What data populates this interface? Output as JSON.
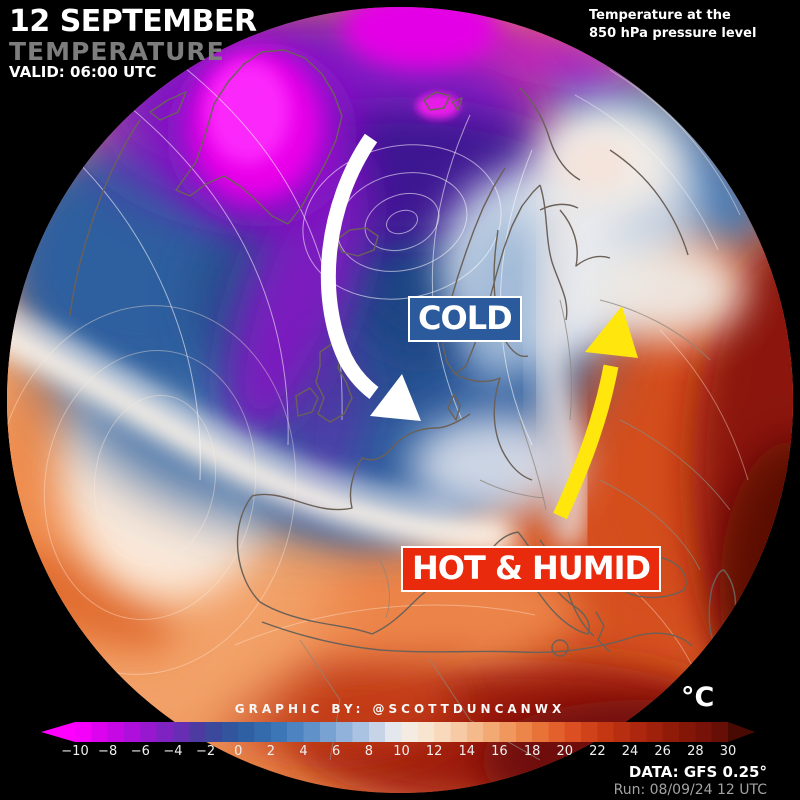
{
  "header": {
    "date": "12 SEPTEMBER",
    "title": "TEMPERATURE",
    "valid": "VALID: 06:00 UTC"
  },
  "note": {
    "line1": "Temperature at the",
    "line2": "850 hPa pressure level"
  },
  "annotations": {
    "cold_label": "COLD",
    "cold_bg": "#2b5b9c",
    "hot_label": "HOT & HUMID",
    "hot_bg": "#ea2a0c"
  },
  "credit": "GRAPHIC BY: @SCOTTDUNCANWX",
  "footer": {
    "unit": "°C",
    "source": "DATA: GFS 0.25°",
    "run": "Run: 08/09/24 12 UTC"
  },
  "chart_data": {
    "type": "heatmap",
    "title": "Temperature at the 850 hPa pressure level",
    "map_labels": [
      "COLD",
      "HOT & HUMID"
    ],
    "arrows": [
      {
        "name": "cold-air-flow",
        "color": "#ffffff"
      },
      {
        "name": "warm-air-flow",
        "color": "#ffe70d"
      }
    ],
    "colorbar": {
      "unit": "°C",
      "min": -10,
      "max": 30,
      "tick_step": 2,
      "ticks": [
        -10,
        -8,
        -6,
        -4,
        -2,
        0,
        2,
        4,
        6,
        8,
        10,
        12,
        14,
        16,
        18,
        20,
        22,
        24,
        26,
        28,
        30
      ],
      "under_color": "#ff00ff",
      "over_color": "#4a0a04",
      "stops": [
        {
          "t": -10,
          "c": "#ff00ff"
        },
        {
          "t": -8,
          "c": "#d004e8"
        },
        {
          "t": -6,
          "c": "#a313d6"
        },
        {
          "t": -4,
          "c": "#7327bb"
        },
        {
          "t": -2,
          "c": "#41419a"
        },
        {
          "t": 0,
          "c": "#2d5b9f"
        },
        {
          "t": 2,
          "c": "#3570b2"
        },
        {
          "t": 4,
          "c": "#5589c4"
        },
        {
          "t": 6,
          "c": "#84aad6"
        },
        {
          "t": 8,
          "c": "#b8cbe6"
        },
        {
          "t": 10,
          "c": "#f2f0ed"
        },
        {
          "t": 12,
          "c": "#f9e1c6"
        },
        {
          "t": 14,
          "c": "#f5c298"
        },
        {
          "t": 16,
          "c": "#f1a067"
        },
        {
          "t": 18,
          "c": "#ea7c3f"
        },
        {
          "t": 20,
          "c": "#e05626"
        },
        {
          "t": 22,
          "c": "#cb3b15"
        },
        {
          "t": 24,
          "c": "#b22a0e"
        },
        {
          "t": 26,
          "c": "#981d0a"
        },
        {
          "t": 28,
          "c": "#7d1407"
        },
        {
          "t": 30,
          "c": "#600c05"
        }
      ]
    }
  }
}
